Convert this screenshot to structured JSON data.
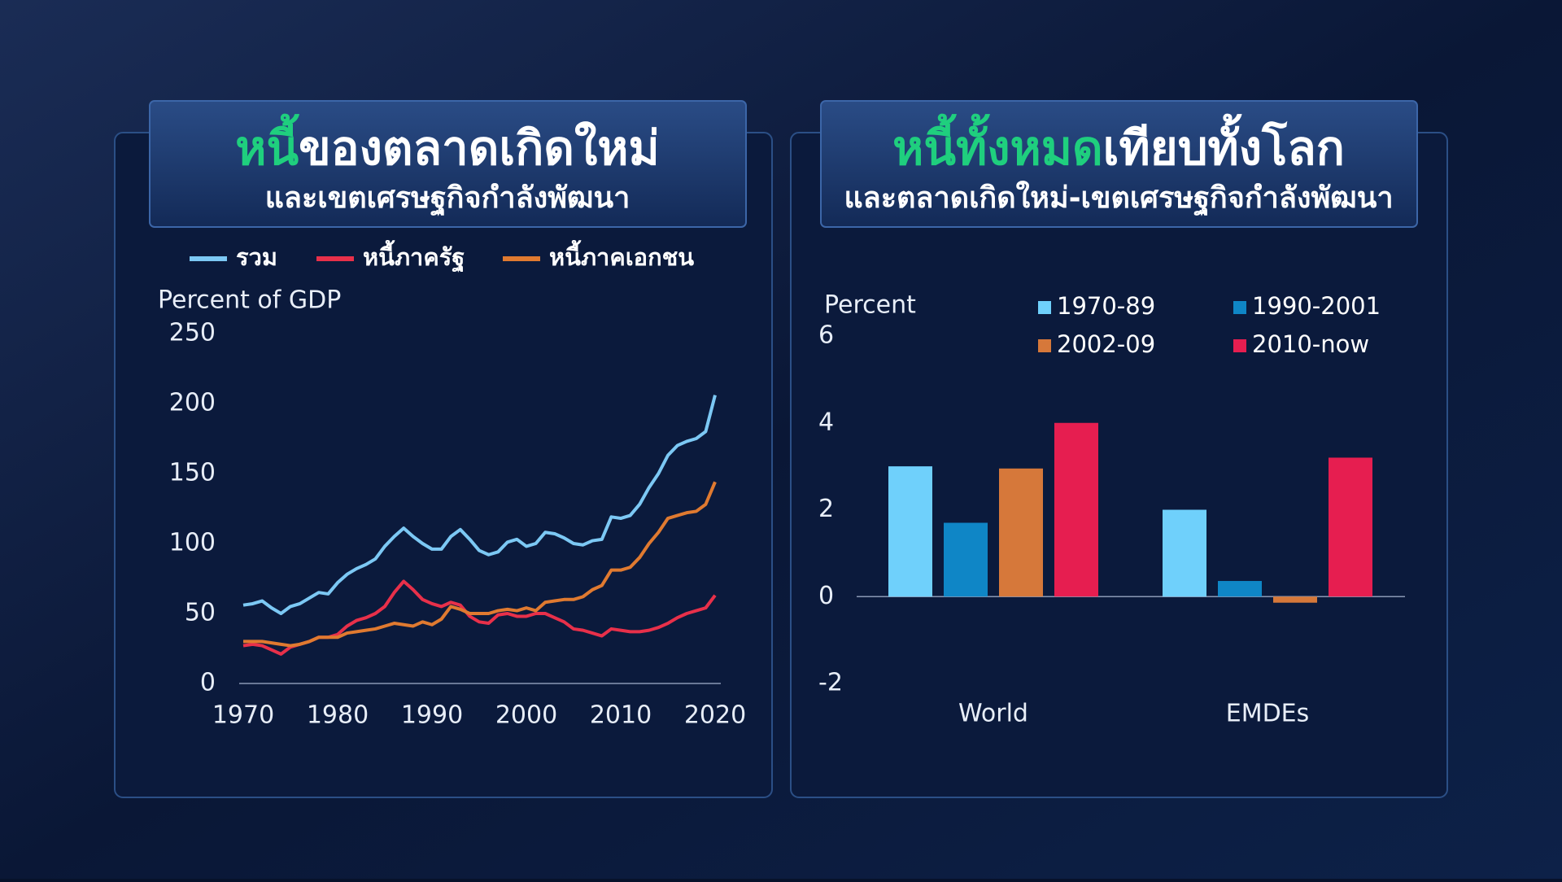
{
  "chart_data": [
    {
      "type": "line",
      "title_highlight": "หนี้",
      "title": "ของตลาดเกิดใหม่",
      "subtitle": "และเขตเศรษฐกิจกำลังพัฒนา",
      "y_label": "Percent of GDP",
      "x": [
        1970,
        1971,
        1972,
        1973,
        1974,
        1975,
        1976,
        1977,
        1978,
        1979,
        1980,
        1981,
        1982,
        1983,
        1984,
        1985,
        1986,
        1987,
        1988,
        1989,
        1990,
        1991,
        1992,
        1993,
        1994,
        1995,
        1996,
        1997,
        1998,
        1999,
        2000,
        2001,
        2002,
        2003,
        2004,
        2005,
        2006,
        2007,
        2008,
        2009,
        2010,
        2011,
        2012,
        2013,
        2014,
        2015,
        2016,
        2017,
        2018,
        2019,
        2020
      ],
      "series": [
        {
          "name": "รวม",
          "color": "#7cc8f4",
          "values": [
            56,
            57,
            59,
            54,
            50,
            55,
            57,
            61,
            65,
            64,
            72,
            78,
            82,
            85,
            89,
            98,
            105,
            111,
            105,
            100,
            96,
            96,
            105,
            110,
            103,
            95,
            92,
            94,
            101,
            103,
            98,
            100,
            108,
            107,
            104,
            100,
            99,
            102,
            103,
            119,
            118,
            120,
            128,
            140,
            150,
            163,
            170,
            173,
            175,
            180,
            206
          ]
        },
        {
          "name": "หนี้ภาครัฐ",
          "color": "#e8304a",
          "values": [
            27,
            28,
            27,
            24,
            21,
            26,
            28,
            30,
            33,
            33,
            35,
            41,
            45,
            47,
            50,
            55,
            65,
            73,
            67,
            60,
            57,
            55,
            58,
            56,
            48,
            44,
            43,
            49,
            50,
            48,
            48,
            50,
            50,
            47,
            44,
            39,
            38,
            36,
            34,
            39,
            38,
            37,
            37,
            38,
            40,
            43,
            47,
            50,
            52,
            54,
            63
          ]
        },
        {
          "name": "หนี้ภาคเอกชน",
          "color": "#e07a30",
          "values": [
            30,
            30,
            30,
            29,
            28,
            27,
            28,
            30,
            33,
            33,
            33,
            36,
            37,
            38,
            39,
            41,
            43,
            42,
            41,
            44,
            42,
            46,
            55,
            53,
            50,
            50,
            50,
            52,
            53,
            52,
            54,
            52,
            58,
            59,
            60,
            60,
            62,
            67,
            70,
            81,
            81,
            83,
            90,
            100,
            108,
            118,
            120,
            122,
            123,
            128,
            144
          ]
        }
      ],
      "xlim": [
        1970,
        2020
      ],
      "xticks": [
        1970,
        1980,
        1990,
        2000,
        2010,
        2020
      ],
      "ylim": [
        0,
        250
      ],
      "yticks": [
        0,
        50,
        100,
        150,
        200,
        250
      ]
    },
    {
      "type": "bar",
      "title_highlight": "หนี้ทั้งหมด",
      "title": "เทียบทั้งโลก",
      "subtitle": "และตลาดเกิดใหม่-เขตเศรษฐกิจกำลังพัฒนา",
      "y_label": "Percent",
      "categories": [
        "World",
        "EMDEs"
      ],
      "series": [
        {
          "name": "1970-89",
          "color": "#6fd0fb",
          "values": [
            3.0,
            2.0
          ]
        },
        {
          "name": "1990-2001",
          "color": "#0f86c6",
          "values": [
            1.7,
            0.36
          ]
        },
        {
          "name": "2002-09",
          "color": "#d6783a",
          "values": [
            2.95,
            -0.14
          ]
        },
        {
          "name": "2010-now",
          "color": "#e61e50",
          "values": [
            4.0,
            3.2
          ]
        }
      ],
      "ylim": [
        -2,
        6
      ],
      "yticks": [
        -2,
        0,
        2,
        4,
        6
      ]
    }
  ]
}
